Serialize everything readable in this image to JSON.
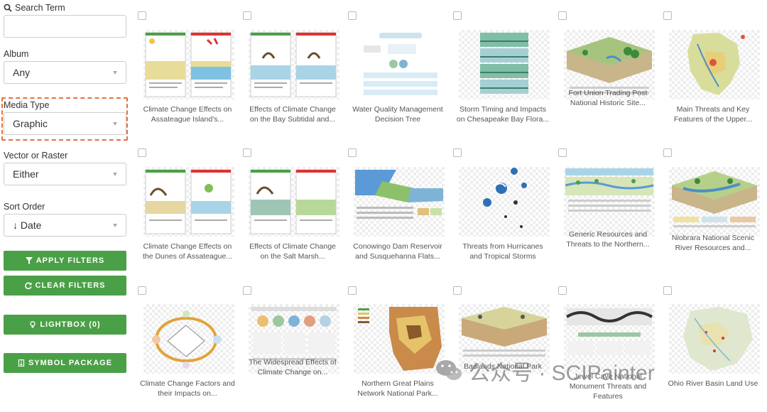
{
  "filters": {
    "search_label": "Search Term",
    "search_value": "",
    "album_label": "Album",
    "album_value": "Any",
    "media_type_label": "Media Type",
    "media_type_value": "Graphic",
    "vector_label": "Vector or Raster",
    "vector_value": "Either",
    "sort_label": "Sort Order",
    "sort_value": "↓ Date"
  },
  "buttons": {
    "apply": "APPLY FILTERS",
    "clear": "CLEAR FILTERS",
    "lightbox": "LIGHTBOX (0)",
    "symbol": "SYMBOL PACKAGE"
  },
  "colors": {
    "button_green": "#4aa046",
    "highlight_orange": "#e8713d"
  },
  "cards": [
    {
      "caption_1": "Climate Change Effects on",
      "caption_2": "Assateague Island's..."
    },
    {
      "caption_1": "Effects of Climate Change",
      "caption_2": "on the Bay Subtidal and..."
    },
    {
      "caption_1": "Water Quality Management",
      "caption_2": "Decision Tree"
    },
    {
      "caption_1": "Storm Timing and Impacts",
      "caption_2": "on Chesapeake Bay Flora..."
    },
    {
      "caption_1": "Fort Union Trading Post",
      "caption_2": "National Historic Site..."
    },
    {
      "caption_1": "Main Threats and Key",
      "caption_2": "Features of the Upper..."
    },
    {
      "caption_1": "Climate Change Effects on",
      "caption_2": "the Dunes of Assateague..."
    },
    {
      "caption_1": "Effects of Climate Change",
      "caption_2": "on the Salt Marsh..."
    },
    {
      "caption_1": "Conowingo Dam Reservoir",
      "caption_2": "and Susquehanna Flats..."
    },
    {
      "caption_1": "Threats from Hurricanes",
      "caption_2": "and Tropical Storms"
    },
    {
      "caption_1": "Generic Resources and",
      "caption_2": "Threats to the Northern..."
    },
    {
      "caption_1": "Niobrara National Scenic",
      "caption_2": "River Resources and..."
    },
    {
      "caption_1": "Climate Change Factors and",
      "caption_2": "their Impacts on..."
    },
    {
      "caption_1": "The Widespread Effects of",
      "caption_2": "Climate Change on..."
    },
    {
      "caption_1": "Northern Great Plains",
      "caption_2": "Network National Park..."
    },
    {
      "caption_1": "Badlands National Park",
      "caption_2": ""
    },
    {
      "caption_1": "Jewel Cave National",
      "caption_2": "Monument Threats and",
      "caption_3": "Features"
    },
    {
      "caption_1": "Ohio River Basin Land Use",
      "caption_2": ""
    }
  ],
  "watermark": {
    "text": "公众号 · SCIPainter"
  }
}
